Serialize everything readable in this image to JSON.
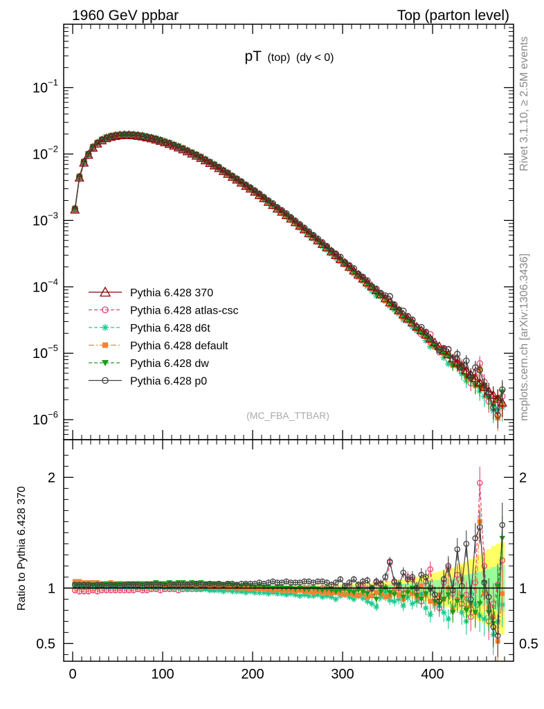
{
  "header": {
    "left": "1960 GeV ppbar",
    "right": "Top (parton level)"
  },
  "side_labels": {
    "rivet": "Rivet 3.1.10, ≥ 2.5M events",
    "mcplots": "mcplots.cern.ch [arXiv:1306.3436]"
  },
  "colors": {
    "370": "#8b0000",
    "atlas_csc": "#e8406e",
    "d6t": "#1bc98e",
    "default": "#f58231",
    "dw": "#1a9e1a",
    "p0": "#404040",
    "band_outer": "#ffff66",
    "band_inner": "#99ff99"
  },
  "chart_data": [
    {
      "type": "line",
      "title_main": "pT",
      "title_sub": "(top)",
      "title_cut": "(dy < 0)",
      "watermark": "(MC_FBA_TTBAR)",
      "xlim": [
        -10,
        490
      ],
      "ylim": [
        5e-07,
        0.9
      ],
      "yscale": "log",
      "y_tick_labels": [
        {
          "base": "10",
          "exp": "−1",
          "value": 0.1
        },
        {
          "base": "10",
          "exp": "−2",
          "value": 0.01
        },
        {
          "base": "10",
          "exp": "−3",
          "value": 0.001
        },
        {
          "base": "10",
          "exp": "−4",
          "value": 0.0001
        },
        {
          "base": "10",
          "exp": "−5",
          "value": 1e-05
        },
        {
          "base": "10",
          "exp": "−6",
          "value": 1e-06
        }
      ],
      "x": [
        2.5,
        7.5,
        12.5,
        17.5,
        22.5,
        27.5,
        32.5,
        37.5,
        42.5,
        47.5,
        52.5,
        57.5,
        62.5,
        67.5,
        72.5,
        77.5,
        82.5,
        87.5,
        92.5,
        97.5,
        102.5,
        107.5,
        112.5,
        117.5,
        122.5,
        127.5,
        132.5,
        137.5,
        142.5,
        147.5,
        152.5,
        157.5,
        162.5,
        167.5,
        172.5,
        177.5,
        182.5,
        187.5,
        192.5,
        197.5,
        202.5,
        207.5,
        212.5,
        217.5,
        222.5,
        227.5,
        232.5,
        237.5,
        242.5,
        247.5,
        252.5,
        257.5,
        262.5,
        267.5,
        272.5,
        277.5,
        282.5,
        287.5,
        292.5,
        297.5,
        302.5,
        307.5,
        312.5,
        317.5,
        322.5,
        327.5,
        332.5,
        337.5,
        342.5,
        347.5,
        352.5,
        357.5,
        362.5,
        367.5,
        372.5,
        377.5,
        382.5,
        387.5,
        392.5,
        397.5,
        402.5,
        407.5,
        412.5,
        417.5,
        422.5,
        427.5,
        432.5,
        437.5,
        442.5,
        447.5,
        452.5,
        457.5,
        462.5,
        467.5,
        472.5,
        477.5
      ],
      "reference_series": {
        "name": "Pythia 6.428 370",
        "values": [
          0.00145,
          0.0044,
          0.0074,
          0.0097,
          0.0124,
          0.0143,
          0.016,
          0.0172,
          0.018,
          0.0186,
          0.019,
          0.0192,
          0.0192,
          0.019,
          0.0187,
          0.0183,
          0.0177,
          0.0171,
          0.0164,
          0.0157,
          0.0149,
          0.0141,
          0.0133,
          0.0125,
          0.0117,
          0.0109,
          0.0101,
          0.0094,
          0.0087,
          0.008,
          0.0073,
          0.0067,
          0.0061,
          0.0055,
          0.005,
          0.0045,
          0.0041,
          0.0037,
          0.0033,
          0.003,
          0.0027,
          0.0024,
          0.00215,
          0.0019,
          0.0017,
          0.0015,
          0.00135,
          0.0012,
          0.00106,
          0.00094,
          0.00083,
          0.00073,
          0.00064,
          0.00057,
          0.0005,
          0.00044,
          0.00039,
          0.00034,
          0.0003,
          0.00026,
          0.00023,
          0.0002,
          0.000175,
          0.000152,
          0.000133,
          0.000116,
          0.000101,
          8.8e-05,
          7.7e-05,
          6.7e-05,
          5.8e-05,
          5.1e-05,
          4.4e-05,
          3.8e-05,
          3.3e-05,
          2.9e-05,
          2.5e-05,
          2.2e-05,
          1.9e-05,
          1.65e-05,
          1.45e-05,
          1.27e-05,
          1.1e-05,
          9.6e-06,
          8.3e-06,
          7.2e-06,
          6.3e-06,
          5.5e-06,
          4.8e-06,
          4.2e-06,
          3.6e-06,
          3.1e-06,
          2.7e-06,
          2.35e-06,
          2.05e-06,
          1.8e-06
        ]
      },
      "series": [
        {
          "name": "Pythia 6.428 370",
          "key": "370",
          "style": "solid",
          "marker": "triangle-open"
        },
        {
          "name": "Pythia 6.428 atlas-csc",
          "key": "atlas_csc",
          "style": "dashed",
          "marker": "circle-open"
        },
        {
          "name": "Pythia 6.428 d6t",
          "key": "d6t",
          "style": "dashed",
          "marker": "star"
        },
        {
          "name": "Pythia 6.428 default",
          "key": "default",
          "style": "dashdot",
          "marker": "square-filled"
        },
        {
          "name": "Pythia 6.428 dw",
          "key": "dw",
          "style": "dashed",
          "marker": "triangle-down-filled"
        },
        {
          "name": "Pythia 6.428 p0",
          "key": "p0",
          "style": "solid",
          "marker": "circle-open"
        }
      ],
      "legend_position": "lower-left"
    },
    {
      "type": "line",
      "ylabel": "Ratio to Pythia 6.428 370",
      "xlim": [
        -10,
        490
      ],
      "ylim": [
        0.34,
        2.34
      ],
      "x_tick_labels": [
        "0",
        "100",
        "200",
        "300",
        "400"
      ],
      "x_tick_values": [
        0,
        100,
        200,
        300,
        400
      ],
      "y_tick_labels": [
        "2",
        "1",
        "0.5"
      ],
      "y_tick_values": [
        2,
        1,
        0.5
      ],
      "x": [
        2.5,
        7.5,
        12.5,
        17.5,
        22.5,
        27.5,
        32.5,
        37.5,
        42.5,
        47.5,
        52.5,
        57.5,
        62.5,
        67.5,
        72.5,
        77.5,
        82.5,
        87.5,
        92.5,
        97.5,
        102.5,
        107.5,
        112.5,
        117.5,
        122.5,
        127.5,
        132.5,
        137.5,
        142.5,
        147.5,
        152.5,
        157.5,
        162.5,
        167.5,
        172.5,
        177.5,
        182.5,
        187.5,
        192.5,
        197.5,
        202.5,
        207.5,
        212.5,
        217.5,
        222.5,
        227.5,
        232.5,
        237.5,
        242.5,
        247.5,
        252.5,
        257.5,
        262.5,
        267.5,
        272.5,
        277.5,
        282.5,
        287.5,
        292.5,
        297.5,
        302.5,
        307.5,
        312.5,
        317.5,
        322.5,
        327.5,
        332.5,
        337.5,
        342.5,
        347.5,
        352.5,
        357.5,
        362.5,
        367.5,
        372.5,
        377.5,
        382.5,
        387.5,
        392.5,
        397.5,
        402.5,
        407.5,
        412.5,
        417.5,
        422.5,
        427.5,
        432.5,
        437.5,
        442.5,
        447.5,
        452.5,
        457.5,
        462.5,
        467.5,
        472.5,
        477.5
      ],
      "band_half_width": [
        0.02,
        0.02,
        0.02,
        0.02,
        0.02,
        0.02,
        0.02,
        0.02,
        0.02,
        0.02,
        0.02,
        0.02,
        0.02,
        0.02,
        0.02,
        0.02,
        0.02,
        0.02,
        0.02,
        0.02,
        0.02,
        0.02,
        0.02,
        0.02,
        0.02,
        0.02,
        0.02,
        0.02,
        0.02,
        0.02,
        0.02,
        0.02,
        0.02,
        0.02,
        0.02,
        0.02,
        0.02,
        0.02,
        0.02,
        0.02,
        0.025,
        0.025,
        0.025,
        0.025,
        0.025,
        0.025,
        0.025,
        0.025,
        0.025,
        0.025,
        0.03,
        0.03,
        0.03,
        0.03,
        0.03,
        0.03,
        0.035,
        0.035,
        0.035,
        0.035,
        0.04,
        0.04,
        0.04,
        0.045,
        0.045,
        0.05,
        0.05,
        0.055,
        0.06,
        0.06,
        0.065,
        0.07,
        0.075,
        0.08,
        0.085,
        0.09,
        0.1,
        0.11,
        0.12,
        0.13,
        0.14,
        0.15,
        0.16,
        0.17,
        0.18,
        0.2,
        0.22,
        0.24,
        0.26,
        0.28,
        0.3,
        0.32,
        0.35,
        0.38,
        0.4,
        0.42
      ],
      "series": [
        {
          "key": "370",
          "values": [
            1.0,
            1.0,
            1.0,
            1.0,
            1.0,
            1.0,
            1.0,
            1.0,
            1.0,
            1.0,
            1.0,
            1.0,
            1.0,
            1.0,
            1.0,
            1.0,
            1.0,
            1.0,
            1.0,
            1.0,
            1.0,
            1.0,
            1.0,
            1.0,
            1.0,
            1.0,
            1.0,
            1.0,
            1.0,
            1.0,
            1.0,
            1.0,
            1.0,
            1.0,
            1.0,
            1.0,
            1.0,
            1.0,
            1.0,
            1.0,
            1.0,
            1.0,
            1.0,
            1.0,
            1.0,
            1.0,
            1.0,
            1.0,
            1.0,
            1.0,
            1.0,
            1.0,
            1.0,
            1.0,
            1.0,
            1.0,
            1.0,
            1.0,
            1.0,
            1.0,
            1.0,
            1.0,
            1.0,
            1.0,
            1.0,
            1.0,
            1.0,
            1.0,
            1.0,
            1.0,
            1.0,
            1.0,
            1.0,
            1.0,
            1.0,
            1.0,
            1.0,
            1.0,
            1.0,
            1.0,
            1.0,
            1.0,
            1.0,
            1.0,
            1.0,
            1.0,
            1.0,
            1.0,
            1.0,
            1.0,
            1.0,
            1.0,
            1.0,
            1.0,
            1.0,
            1.0
          ]
        },
        {
          "key": "atlas_csc",
          "values": [
            0.98,
            0.97,
            0.97,
            0.97,
            0.98,
            0.97,
            0.98,
            0.98,
            0.98,
            0.98,
            0.98,
            0.98,
            0.98,
            0.98,
            0.99,
            0.98,
            0.98,
            0.99,
            0.99,
            0.98,
            0.99,
            0.99,
            0.99,
            0.98,
            0.99,
            0.99,
            0.99,
            0.99,
            0.99,
            1.0,
            0.99,
            0.99,
            1.0,
            0.99,
            1.0,
            0.99,
            1.0,
            0.98,
            1.0,
            0.99,
            0.99,
            0.99,
            1.0,
            0.99,
            0.99,
            0.99,
            1.0,
            0.98,
            1.0,
            0.99,
            0.99,
            1.0,
            1.0,
            0.98,
            0.99,
            1.0,
            1.0,
            0.99,
            1.01,
            0.98,
            1.0,
            1.02,
            0.98,
            1.0,
            1.03,
            0.99,
            0.96,
            1.05,
            1.03,
            0.98,
            1.23,
            1.05,
            1.0,
            0.95,
            1.1,
            1.08,
            0.97,
            0.88,
            1.06,
            1.17,
            0.9,
            0.82,
            1.05,
            1.18,
            0.95,
            1.12,
            0.86,
            0.94,
            0.74,
            1.05,
            1.95,
            1.2,
            0.7,
            0.86,
            1.03,
            1.25
          ]
        },
        {
          "key": "d6t",
          "values": [
            1.02,
            1.02,
            1.02,
            1.02,
            1.01,
            1.01,
            1.02,
            1.01,
            1.01,
            1.01,
            1.02,
            1.01,
            1.01,
            1.01,
            1.01,
            1.01,
            1.01,
            1.01,
            1.0,
            1.01,
            1.01,
            1.0,
            1.0,
            1.0,
            1.0,
            0.99,
            1.0,
            0.99,
            0.99,
            0.99,
            0.98,
            0.98,
            0.98,
            0.97,
            0.98,
            0.97,
            0.97,
            0.97,
            0.96,
            0.97,
            0.96,
            0.96,
            0.96,
            0.95,
            0.96,
            0.95,
            0.95,
            0.94,
            0.95,
            0.94,
            0.93,
            0.94,
            0.93,
            0.93,
            0.94,
            0.92,
            0.93,
            0.92,
            0.9,
            0.93,
            0.95,
            0.92,
            0.9,
            0.94,
            0.91,
            0.88,
            0.86,
            0.83,
            0.92,
            0.96,
            0.89,
            0.88,
            0.9,
            0.84,
            0.92,
            0.86,
            0.88,
            0.95,
            0.82,
            0.76,
            0.87,
            0.84,
            0.78,
            0.72,
            0.83,
            0.9,
            0.78,
            0.7,
            0.95,
            0.85,
            0.75,
            0.72,
            0.8,
            0.58,
            0.7,
            0.85
          ]
        },
        {
          "key": "default",
          "values": [
            1.06,
            1.06,
            1.05,
            1.05,
            1.05,
            1.05,
            1.04,
            1.04,
            1.05,
            1.04,
            1.04,
            1.04,
            1.04,
            1.04,
            1.03,
            1.04,
            1.03,
            1.03,
            1.04,
            1.03,
            1.03,
            1.03,
            1.02,
            1.03,
            1.02,
            1.02,
            1.02,
            1.02,
            1.01,
            1.02,
            1.01,
            1.01,
            1.01,
            1.01,
            1.0,
            1.01,
            1.0,
            1.0,
            1.0,
            0.99,
            1.0,
            0.99,
            0.99,
            0.99,
            0.98,
            0.99,
            0.98,
            0.98,
            0.98,
            0.97,
            0.98,
            0.97,
            0.97,
            0.96,
            0.97,
            0.96,
            0.96,
            0.95,
            0.96,
            0.95,
            0.94,
            0.95,
            0.94,
            0.93,
            0.95,
            0.92,
            0.93,
            0.96,
            0.95,
            0.92,
            0.93,
            0.98,
            0.94,
            0.9,
            0.97,
            0.95,
            0.92,
            1.02,
            0.94,
            0.88,
            0.86,
            0.94,
            0.9,
            1.0,
            0.8,
            0.9,
            1.08,
            0.82,
            0.84,
            0.78,
            1.6,
            0.95,
            0.82,
            0.74,
            0.52,
            0.95
          ]
        },
        {
          "key": "dw",
          "values": [
            1.03,
            1.03,
            1.03,
            1.03,
            1.03,
            1.03,
            1.03,
            1.04,
            1.03,
            1.03,
            1.04,
            1.03,
            1.04,
            1.04,
            1.04,
            1.04,
            1.04,
            1.04,
            1.05,
            1.04,
            1.04,
            1.05,
            1.04,
            1.05,
            1.05,
            1.04,
            1.05,
            1.04,
            1.05,
            1.04,
            1.04,
            1.04,
            1.04,
            1.03,
            1.04,
            1.03,
            1.03,
            1.02,
            1.03,
            1.02,
            1.01,
            1.02,
            1.01,
            1.01,
            1.0,
            1.01,
            1.0,
            1.0,
            1.0,
            0.99,
            1.0,
            0.99,
            0.99,
            1.0,
            0.99,
            0.98,
            0.99,
            0.98,
            0.97,
            0.98,
            0.99,
            0.97,
            0.96,
            0.98,
            0.97,
            0.95,
            0.99,
            0.9,
            0.97,
            1.0,
            0.96,
            0.94,
            1.03,
            0.92,
            0.96,
            1.0,
            0.93,
            0.9,
            0.95,
            0.98,
            0.88,
            0.86,
            0.9,
            0.94,
            0.78,
            0.88,
            0.92,
            0.8,
            0.86,
            0.78,
            0.86,
            1.05,
            0.78,
            0.68,
            1.02,
            1.45
          ]
        },
        {
          "key": "p0",
          "values": [
            1.03,
            1.03,
            1.03,
            1.03,
            1.02,
            1.03,
            1.03,
            1.02,
            1.03,
            1.03,
            1.02,
            1.03,
            1.03,
            1.03,
            1.03,
            1.02,
            1.03,
            1.03,
            1.03,
            1.03,
            1.02,
            1.03,
            1.03,
            1.03,
            1.03,
            1.03,
            1.03,
            1.04,
            1.03,
            1.03,
            1.04,
            1.03,
            1.04,
            1.03,
            1.04,
            1.04,
            1.03,
            1.04,
            1.04,
            1.04,
            1.04,
            1.05,
            1.04,
            1.05,
            1.06,
            1.05,
            1.05,
            1.06,
            1.05,
            1.05,
            1.05,
            1.06,
            1.06,
            1.05,
            1.06,
            1.06,
            1.05,
            1.03,
            1.05,
            1.08,
            1.02,
            1.05,
            1.08,
            1.03,
            1.06,
            1.07,
            1.0,
            1.06,
            1.04,
            1.1,
            1.24,
            1.06,
            1.02,
            1.14,
            1.08,
            1.1,
            1.0,
            1.12,
            1.1,
            1.0,
            0.94,
            0.88,
            1.08,
            1.2,
            0.98,
            1.35,
            1.02,
            1.4,
            0.9,
            1.45,
            1.55,
            1.05,
            0.92,
            0.65,
            0.57,
            1.57
          ]
        }
      ]
    }
  ]
}
